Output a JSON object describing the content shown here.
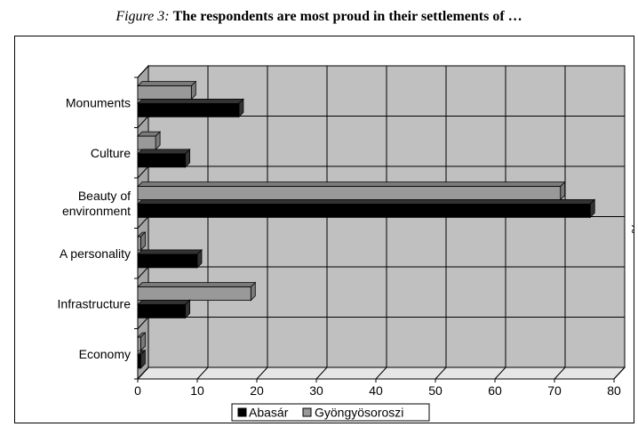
{
  "caption": {
    "lead": "Figure 3:",
    "title": "The respondents are most proud in their settlements of …"
  },
  "chart_data": {
    "type": "bar",
    "orientation": "horizontal",
    "style": "3d",
    "categories": [
      "Monuments",
      "Culture",
      "Beauty of environment",
      "A personality",
      "Infrastructure",
      "Economy"
    ],
    "category_lines": [
      [
        "Monuments"
      ],
      [
        "Culture"
      ],
      [
        "Beauty of",
        "environment"
      ],
      [
        "A personality"
      ],
      [
        "Infrastructure"
      ],
      [
        "Economy"
      ]
    ],
    "series": [
      {
        "name": "Abasár",
        "color": "#000000",
        "values": [
          17,
          8,
          76,
          10,
          8,
          0.5
        ]
      },
      {
        "name": "Gyöngyösoroszi",
        "color": "#999999",
        "values": [
          9,
          3,
          71,
          0.5,
          19,
          0.5
        ]
      }
    ],
    "xlim": [
      0,
      80
    ],
    "xticks": [
      0,
      10,
      20,
      30,
      40,
      50,
      60,
      70,
      80
    ],
    "xlabel": "%",
    "grid": true,
    "legend_position": "bottom",
    "wall_color": "#c0c0c0",
    "grid_color": "#000000"
  }
}
